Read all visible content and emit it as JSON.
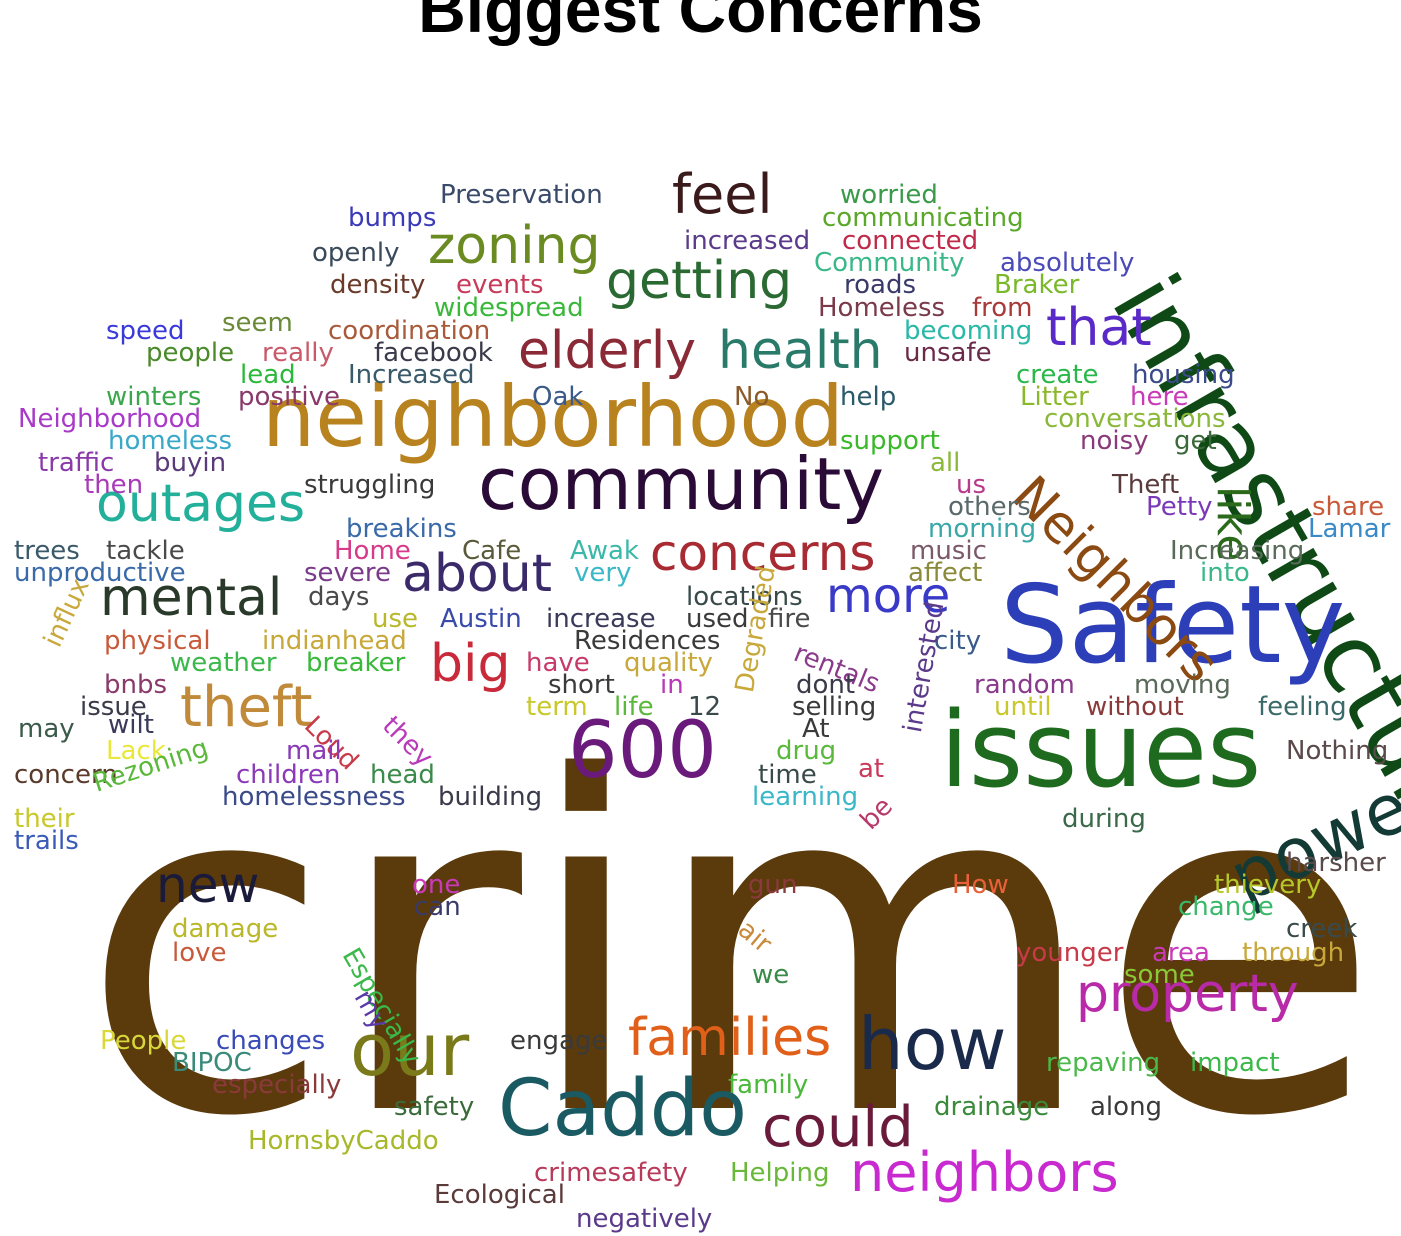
{
  "title": "Biggest Concerns",
  "words": [
    {
      "text": "crime",
      "color": "#5b3a0c"
    },
    {
      "text": "infrastructure",
      "color": "#0f4a16"
    },
    {
      "text": "Safety",
      "color": "#2c3fb8"
    },
    {
      "text": "issues",
      "color": "#1e6a1e"
    },
    {
      "text": "neighborhood",
      "color": "#b8821e"
    },
    {
      "text": "community",
      "color": "#2a0a36"
    },
    {
      "text": "600",
      "color": "#6a1a7a"
    },
    {
      "text": "Caddo",
      "color": "#1a5a62"
    },
    {
      "text": "power",
      "color": "#143a36"
    },
    {
      "text": "how",
      "color": "#1a2a4a"
    },
    {
      "text": "our",
      "color": "#7a7a1a"
    },
    {
      "text": "outages",
      "color": "#22b09a"
    },
    {
      "text": "Neighbors",
      "color": "#8a4a12"
    },
    {
      "text": "getting",
      "color": "#2a6a32"
    },
    {
      "text": "elderly",
      "color": "#8a2a36"
    },
    {
      "text": "health",
      "color": "#2a7a6a"
    },
    {
      "text": "zoning",
      "color": "#6a8a22"
    },
    {
      "text": "mental",
      "color": "#2a3a2a"
    },
    {
      "text": "concerns",
      "color": "#a82a32"
    },
    {
      "text": "about",
      "color": "#3a2a6a"
    },
    {
      "text": "theft",
      "color": "#c08a3a"
    },
    {
      "text": "property",
      "color": "#b82aa8"
    },
    {
      "text": "families",
      "color": "#e0601a"
    },
    {
      "text": "neighbors",
      "color": "#c82ad0"
    },
    {
      "text": "could",
      "color": "#6a1a3a"
    },
    {
      "text": "more",
      "color": "#3a3ac8"
    },
    {
      "text": "big",
      "color": "#c82a3a"
    },
    {
      "text": "new",
      "color": "#1a1a3a"
    },
    {
      "text": "feel",
      "color": "#3a1a1a"
    },
    {
      "text": "that",
      "color": "#5a2ac8"
    },
    {
      "text": "like",
      "color": "#2a6a1a"
    },
    {
      "text": "Preservation",
      "color": "#3a4a6a"
    },
    {
      "text": "worried",
      "color": "#3a9a4a"
    },
    {
      "text": "communicating",
      "color": "#5aa82a"
    },
    {
      "text": "bumps",
      "color": "#3a3ab8"
    },
    {
      "text": "increased",
      "color": "#5a3a8a"
    },
    {
      "text": "connected",
      "color": "#c02a4a"
    },
    {
      "text": "openly",
      "color": "#3a4a5a"
    },
    {
      "text": "Community",
      "color": "#3ab88a"
    },
    {
      "text": "absolutely",
      "color": "#4a4ab8"
    },
    {
      "text": "density",
      "color": "#6a3a2a"
    },
    {
      "text": "events",
      "color": "#c83a5a"
    },
    {
      "text": "roads",
      "color": "#3a3a6a"
    },
    {
      "text": "Braker",
      "color": "#7ab82a"
    },
    {
      "text": "widespread",
      "color": "#3ab83a"
    },
    {
      "text": "Homeless",
      "color": "#7a3a4a"
    },
    {
      "text": "from",
      "color": "#a83a3a"
    },
    {
      "text": "speed",
      "color": "#3a3ad8"
    },
    {
      "text": "seem",
      "color": "#6a8a3a"
    },
    {
      "text": "coordination",
      "color": "#a85a3a"
    },
    {
      "text": "becoming",
      "color": "#2ab8a8"
    },
    {
      "text": "people",
      "color": "#4a8a2a"
    },
    {
      "text": "really",
      "color": "#c85a6a"
    },
    {
      "text": "facebook",
      "color": "#3a3a4a"
    },
    {
      "text": "unsafe",
      "color": "#6a2a4a"
    },
    {
      "text": "lead",
      "color": "#2ab83a"
    },
    {
      "text": "Increased",
      "color": "#3a5a6a"
    },
    {
      "text": "winters",
      "color": "#3aa84a"
    },
    {
      "text": "positive",
      "color": "#8a3a6a"
    },
    {
      "text": "Oak",
      "color": "#3a5a8a"
    },
    {
      "text": "No",
      "color": "#8a5a2a"
    },
    {
      "text": "help",
      "color": "#2a5a6a"
    },
    {
      "text": "create",
      "color": "#2ab84a"
    },
    {
      "text": "housing",
      "color": "#3a4a8a"
    },
    {
      "text": "Neighborhood",
      "color": "#a83ac8"
    },
    {
      "text": "Litter",
      "color": "#8ab82a"
    },
    {
      "text": "here",
      "color": "#c83ab8"
    },
    {
      "text": "homeless",
      "color": "#3aa8c8"
    },
    {
      "text": "conversations",
      "color": "#8ab83a"
    },
    {
      "text": "support",
      "color": "#3ab82a"
    },
    {
      "text": "traffic",
      "color": "#8a3aa8"
    },
    {
      "text": "buyin",
      "color": "#5a3a7a"
    },
    {
      "text": "noisy",
      "color": "#8a3a7a"
    },
    {
      "text": "get",
      "color": "#3a6a3a"
    },
    {
      "text": "all",
      "color": "#8ab83a"
    },
    {
      "text": "then",
      "color": "#a83ab8"
    },
    {
      "text": "struggling",
      "color": "#3a3a3a"
    },
    {
      "text": "us",
      "color": "#b83a8a"
    },
    {
      "text": "Theft",
      "color": "#5a3a3a"
    },
    {
      "text": "others",
      "color": "#5a6a6a"
    },
    {
      "text": "Petty",
      "color": "#7a3ab8"
    },
    {
      "text": "share",
      "color": "#c85a3a"
    },
    {
      "text": "breakins",
      "color": "#3a6aa8"
    },
    {
      "text": "morning",
      "color": "#3aa8a8"
    },
    {
      "text": "Lamar",
      "color": "#3a8ac8"
    },
    {
      "text": "trees",
      "color": "#3a5a6a"
    },
    {
      "text": "tackle",
      "color": "#4a4a4a"
    },
    {
      "text": "Home",
      "color": "#d83a8a"
    },
    {
      "text": "Cafe",
      "color": "#5a5a3a"
    },
    {
      "text": "Awak",
      "color": "#3ab8a8"
    },
    {
      "text": "music",
      "color": "#7a5a6a"
    },
    {
      "text": "Increasing",
      "color": "#5a6a5a"
    },
    {
      "text": "unproductive",
      "color": "#3a6aa8"
    },
    {
      "text": "severe",
      "color": "#7a3a8a"
    },
    {
      "text": "very",
      "color": "#3ab8c8"
    },
    {
      "text": "affect",
      "color": "#8a8a3a"
    },
    {
      "text": "into",
      "color": "#3ab88a"
    },
    {
      "text": "days",
      "color": "#4a4a4a"
    },
    {
      "text": "locations",
      "color": "#3a4a4a"
    },
    {
      "text": "use",
      "color": "#b8b82a"
    },
    {
      "text": "Austin",
      "color": "#3a4aa8"
    },
    {
      "text": "increase",
      "color": "#3a3a5a"
    },
    {
      "text": "used",
      "color": "#3a3a3a"
    },
    {
      "text": "fire",
      "color": "#4a4a4a"
    },
    {
      "text": "city",
      "color": "#3a5a8a"
    },
    {
      "text": "physical",
      "color": "#c85a3a"
    },
    {
      "text": "indianhead",
      "color": "#c8a83a"
    },
    {
      "text": "Residences",
      "color": "#3a3a3a"
    },
    {
      "text": "rentals",
      "color": "#8a3a8a"
    },
    {
      "text": "influx",
      "color": "#c8a83a"
    },
    {
      "text": "weather",
      "color": "#3ab84a"
    },
    {
      "text": "breaker",
      "color": "#3ab83a"
    },
    {
      "text": "have",
      "color": "#c83a6a"
    },
    {
      "text": "quality",
      "color": "#c8a83a"
    },
    {
      "text": "bnbs",
      "color": "#8a3a6a"
    },
    {
      "text": "short",
      "color": "#3a3a3a"
    },
    {
      "text": "in",
      "color": "#b83ab8"
    },
    {
      "text": "dont",
      "color": "#3a3a4a"
    },
    {
      "text": "random",
      "color": "#8a3a8a"
    },
    {
      "text": "moving",
      "color": "#5a6a5a"
    },
    {
      "text": "issue",
      "color": "#3a3a4a"
    },
    {
      "text": "wilt",
      "color": "#3a3a5a"
    },
    {
      "text": "term",
      "color": "#c8c82a"
    },
    {
      "text": "life",
      "color": "#5ab83a"
    },
    {
      "text": "12",
      "color": "#3a4a4a"
    },
    {
      "text": "selling",
      "color": "#3a3a3a"
    },
    {
      "text": "until",
      "color": "#c8c82a"
    },
    {
      "text": "without",
      "color": "#8a3a3a"
    },
    {
      "text": "feeling",
      "color": "#3a6a6a"
    },
    {
      "text": "Loud",
      "color": "#c83a4a"
    },
    {
      "text": "they",
      "color": "#b83ab8"
    },
    {
      "text": "Degraded",
      "color": "#c8a83a"
    },
    {
      "text": "interested",
      "color": "#5a3a8a"
    },
    {
      "text": "At",
      "color": "#3a3a3a"
    },
    {
      "text": "may",
      "color": "#3a5a4a"
    },
    {
      "text": "Lack",
      "color": "#e8e83a"
    },
    {
      "text": "mail",
      "color": "#8a3ab8"
    },
    {
      "text": "drug",
      "color": "#5ab83a"
    },
    {
      "text": "at",
      "color": "#c83a5a"
    },
    {
      "text": "Nothing",
      "color": "#5a4a4a"
    },
    {
      "text": "concern",
      "color": "#5a3a2a"
    },
    {
      "text": "children",
      "color": "#8a3ab8"
    },
    {
      "text": "head",
      "color": "#3a8a4a"
    },
    {
      "text": "time",
      "color": "#3a4a4a"
    },
    {
      "text": "Rezoning",
      "color": "#5ab83a"
    },
    {
      "text": "homelessness",
      "color": "#3a4a8a"
    },
    {
      "text": "building",
      "color": "#3a3a4a"
    },
    {
      "text": "learning",
      "color": "#3ab8c8"
    },
    {
      "text": "during",
      "color": "#3a6a4a"
    },
    {
      "text": "their",
      "color": "#c8c82a"
    },
    {
      "text": "trails",
      "color": "#3a5ab8"
    },
    {
      "text": "be",
      "color": "#b83a6a"
    },
    {
      "text": "harsher",
      "color": "#5a4a4a"
    },
    {
      "text": "one",
      "color": "#c83ab8"
    },
    {
      "text": "can",
      "color": "#3a3a6a"
    },
    {
      "text": "gun",
      "color": "#8a3a3a"
    },
    {
      "text": "How",
      "color": "#e8603a"
    },
    {
      "text": "thievery",
      "color": "#b8c82a"
    },
    {
      "text": "Especially",
      "color": "#3ab84a"
    },
    {
      "text": "change",
      "color": "#3ab86a"
    },
    {
      "text": "damage",
      "color": "#b8b82a"
    },
    {
      "text": "air",
      "color": "#c88a3a"
    },
    {
      "text": "creek",
      "color": "#3a4a4a"
    },
    {
      "text": "love",
      "color": "#c85a3a"
    },
    {
      "text": "younger",
      "color": "#c83a4a"
    },
    {
      "text": "area",
      "color": "#c83ab8"
    },
    {
      "text": "through",
      "color": "#c8a83a"
    },
    {
      "text": "some",
      "color": "#8ac83a"
    },
    {
      "text": "we",
      "color": "#3a8a4a"
    },
    {
      "text": "my",
      "color": "#5a3aa8"
    },
    {
      "text": "People",
      "color": "#d8d83a"
    },
    {
      "text": "changes",
      "color": "#3a4ab8"
    },
    {
      "text": "engage",
      "color": "#3a3a3a"
    },
    {
      "text": "BIPOC",
      "color": "#3a8a7a"
    },
    {
      "text": "repaving",
      "color": "#4ab84a"
    },
    {
      "text": "impact",
      "color": "#3ab84a"
    },
    {
      "text": "especially",
      "color": "#8a3a3a"
    },
    {
      "text": "family",
      "color": "#4ab83a"
    },
    {
      "text": "safety",
      "color": "#3a6a3a"
    },
    {
      "text": "drainage",
      "color": "#3a8a3a"
    },
    {
      "text": "along",
      "color": "#3a3a3a"
    },
    {
      "text": "HornsbyCaddo",
      "color": "#a8b82a"
    },
    {
      "text": "crimesafety",
      "color": "#b83a5a"
    },
    {
      "text": "Helping",
      "color": "#6ab83a"
    },
    {
      "text": "Ecological",
      "color": "#5a3a3a"
    },
    {
      "text": "negatively",
      "color": "#5a3a8a"
    }
  ]
}
